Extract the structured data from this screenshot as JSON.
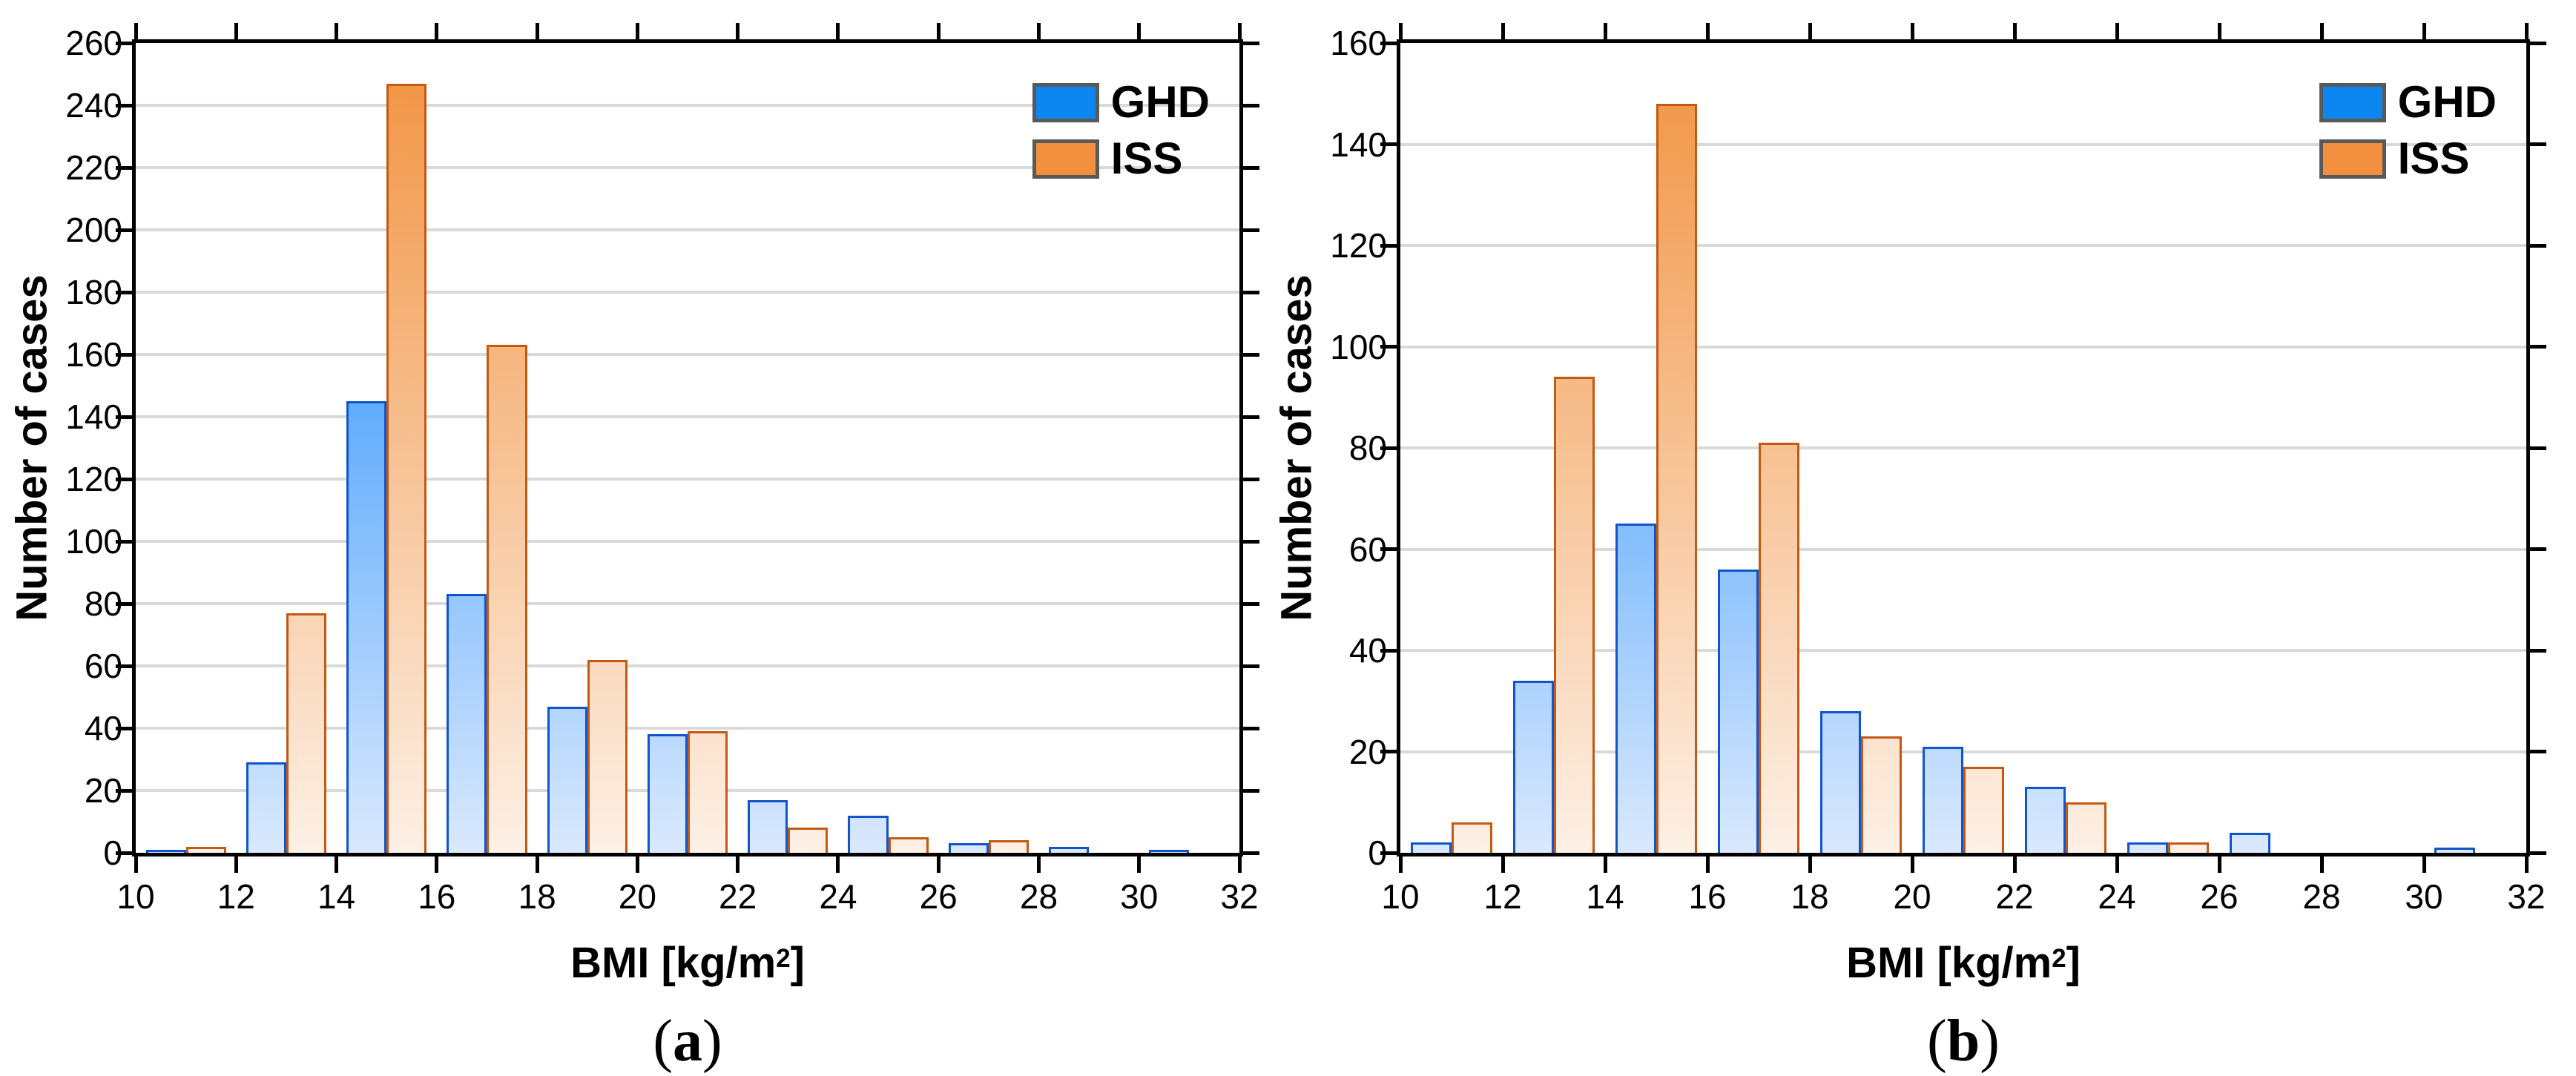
{
  "colors": {
    "background": "#ffffff",
    "axis": "#000000",
    "gridline": "#d9d9d9",
    "text": "#000000",
    "ghd_bar_top": "#007cfc",
    "ghd_bar_bottom": "#dae9fd",
    "ghd_bar_border": "#1155cc",
    "iss_bar_top": "#f1923f",
    "iss_bar_bottom": "#fdf0e6",
    "iss_bar_border": "#c45911",
    "ghd_legend_fill": "#0d87f0",
    "iss_legend_fill": "#f3903f",
    "legend_swatch_border": "#595959"
  },
  "chart_data": [
    {
      "type": "bar",
      "panel_label_open": "(",
      "panel_label_letter": "a",
      "panel_label_close": ")",
      "ylabel": "Number of cases",
      "xlabel": "BMI [kg/m2]",
      "xlabel_parts": {
        "prefix": "BMI [kg/m",
        "sup": "2",
        "suffix": "]"
      },
      "xlim": [
        10,
        32
      ],
      "ylim": [
        0,
        260
      ],
      "bin_width": 2,
      "bin_starts": [
        10,
        12,
        14,
        16,
        18,
        20,
        22,
        24,
        26,
        28,
        30
      ],
      "categories": [
        "10-12",
        "12-14",
        "14-16",
        "16-18",
        "18-20",
        "20-22",
        "22-24",
        "24-26",
        "26-28",
        "28-30",
        "30-32"
      ],
      "x_ticks": [
        "10",
        "12",
        "14",
        "16",
        "18",
        "20",
        "22",
        "24",
        "26",
        "28",
        "30",
        "32"
      ],
      "y_ticks": [
        "0",
        "20",
        "40",
        "60",
        "80",
        "100",
        "120",
        "140",
        "160",
        "180",
        "200",
        "220",
        "240",
        "260"
      ],
      "grid": "horizontal",
      "legend_position": "top-right-inside",
      "series": [
        {
          "name": "GHD",
          "values": [
            1,
            29,
            145,
            83,
            47,
            38,
            17,
            12,
            3,
            2,
            1
          ]
        },
        {
          "name": "ISS",
          "values": [
            2,
            77,
            247,
            163,
            62,
            39,
            8,
            5,
            4,
            0,
            0
          ]
        }
      ]
    },
    {
      "type": "bar",
      "panel_label_open": "(",
      "panel_label_letter": "b",
      "panel_label_close": ")",
      "ylabel": "Number of cases",
      "xlabel": "BMI [kg/m2]",
      "xlabel_parts": {
        "prefix": "BMI [kg/m",
        "sup": "2",
        "suffix": "]"
      },
      "xlim": [
        10,
        32
      ],
      "ylim": [
        0,
        160
      ],
      "bin_width": 2,
      "bin_starts": [
        10,
        12,
        14,
        16,
        18,
        20,
        22,
        24,
        26,
        28,
        30
      ],
      "categories": [
        "10-12",
        "12-14",
        "14-16",
        "16-18",
        "18-20",
        "20-22",
        "22-24",
        "24-26",
        "26-28",
        "28-30",
        "30-32"
      ],
      "x_ticks": [
        "10",
        "12",
        "14",
        "16",
        "18",
        "20",
        "22",
        "24",
        "26",
        "28",
        "30",
        "32"
      ],
      "y_ticks": [
        "0",
        "20",
        "40",
        "60",
        "80",
        "100",
        "120",
        "140",
        "160"
      ],
      "grid": "horizontal",
      "legend_position": "top-right-inside",
      "series": [
        {
          "name": "GHD",
          "values": [
            2,
            34,
            65,
            56,
            28,
            21,
            13,
            2,
            4,
            0,
            1
          ]
        },
        {
          "name": "ISS",
          "values": [
            6,
            94,
            148,
            81,
            23,
            17,
            10,
            2,
            0,
            0,
            0
          ]
        }
      ]
    }
  ]
}
